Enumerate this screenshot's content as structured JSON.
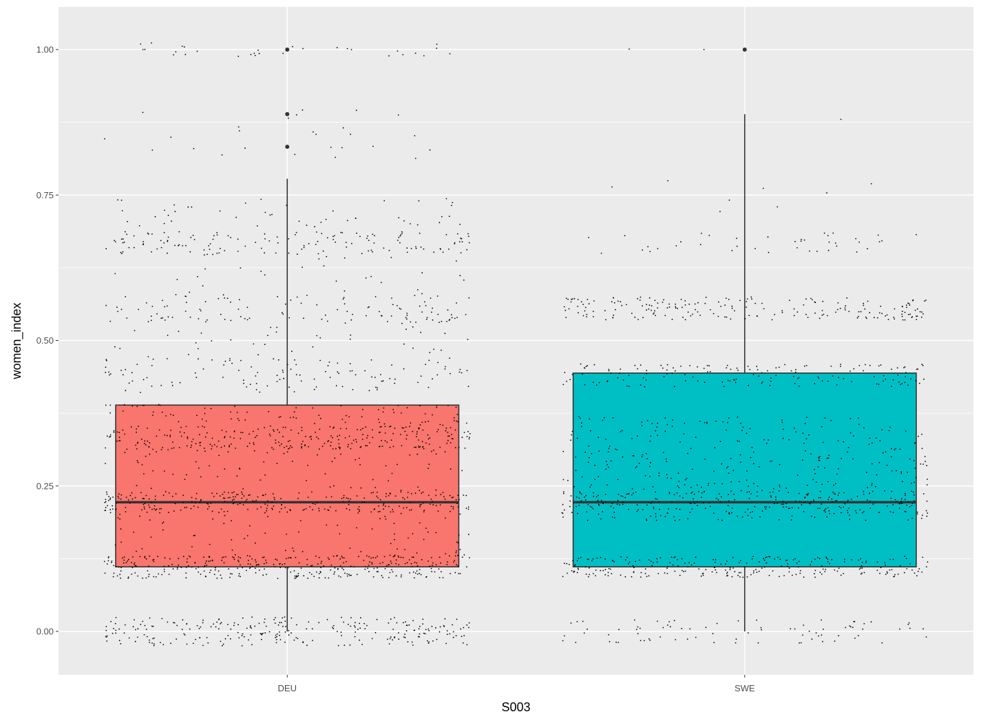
{
  "chart_data": {
    "type": "boxplot",
    "title": "",
    "xlabel": "S003",
    "ylabel": "women_index",
    "categories": [
      "DEU",
      "SWE"
    ],
    "ylim": [
      -0.075,
      1.075
    ],
    "yticks": [
      0.0,
      0.25,
      0.5,
      0.75,
      1.0
    ],
    "ytick_labels": [
      "0.00",
      "0.25",
      "0.50",
      "0.75",
      "1.00"
    ],
    "grid": true,
    "legend": "none",
    "boxes": [
      {
        "category": "DEU",
        "color": "#F8766D",
        "q1": 0.111,
        "median": 0.222,
        "q3": 0.389,
        "whisker_low": 0.0,
        "whisker_high": 0.778,
        "outliers": [
          1.0,
          0.889,
          0.833
        ]
      },
      {
        "category": "SWE",
        "color": "#00BFC4",
        "q1": 0.111,
        "median": 0.222,
        "q3": 0.444,
        "whisker_low": 0.0,
        "whisker_high": 0.889,
        "outliers": [
          1.0
        ]
      }
    ],
    "jitter": {
      "color": "#000000",
      "clusters": [
        {
          "category": "DEU",
          "center": 0.0,
          "spread": 0.025,
          "count": 260
        },
        {
          "category": "DEU",
          "center": 0.111,
          "spread": 0.02,
          "count": 330
        },
        {
          "category": "DEU",
          "center": 0.222,
          "spread": 0.018,
          "count": 260
        },
        {
          "category": "DEU",
          "center": 0.333,
          "spread": 0.02,
          "count": 250
        },
        {
          "category": "DEU",
          "center": 0.165,
          "spread": 0.05,
          "count": 110
        },
        {
          "category": "DEU",
          "center": 0.28,
          "spread": 0.04,
          "count": 90
        },
        {
          "category": "DEU",
          "center": 0.37,
          "spread": 0.02,
          "count": 90
        },
        {
          "category": "DEU",
          "center": 0.44,
          "spread": 0.03,
          "count": 110
        },
        {
          "category": "DEU",
          "center": 0.555,
          "spread": 0.025,
          "count": 110
        },
        {
          "category": "DEU",
          "center": 0.5,
          "spread": 0.04,
          "count": 50
        },
        {
          "category": "DEU",
          "center": 0.667,
          "spread": 0.02,
          "count": 140
        },
        {
          "category": "DEU",
          "center": 0.61,
          "spread": 0.04,
          "count": 30
        },
        {
          "category": "DEU",
          "center": 0.72,
          "spread": 0.025,
          "count": 45
        },
        {
          "category": "DEU",
          "center": 0.84,
          "spread": 0.03,
          "count": 20
        },
        {
          "category": "DEU",
          "center": 0.89,
          "spread": 0.01,
          "count": 6
        },
        {
          "category": "DEU",
          "center": 1.0,
          "spread": 0.012,
          "count": 30
        },
        {
          "category": "SWE",
          "center": 0.0,
          "spread": 0.02,
          "count": 80
        },
        {
          "category": "SWE",
          "center": 0.111,
          "spread": 0.018,
          "count": 250
        },
        {
          "category": "SWE",
          "center": 0.222,
          "spread": 0.02,
          "count": 200
        },
        {
          "category": "SWE",
          "center": 0.28,
          "spread": 0.09,
          "count": 380
        },
        {
          "category": "SWE",
          "center": 0.44,
          "spread": 0.02,
          "count": 150
        },
        {
          "category": "SWE",
          "center": 0.555,
          "spread": 0.02,
          "count": 200
        },
        {
          "category": "SWE",
          "center": 0.667,
          "spread": 0.018,
          "count": 40
        },
        {
          "category": "SWE",
          "center": 0.75,
          "spread": 0.03,
          "count": 8
        },
        {
          "category": "SWE",
          "center": 0.88,
          "spread": 0.01,
          "count": 1
        },
        {
          "category": "SWE",
          "center": 1.0,
          "spread": 0.005,
          "count": 2
        }
      ]
    }
  }
}
